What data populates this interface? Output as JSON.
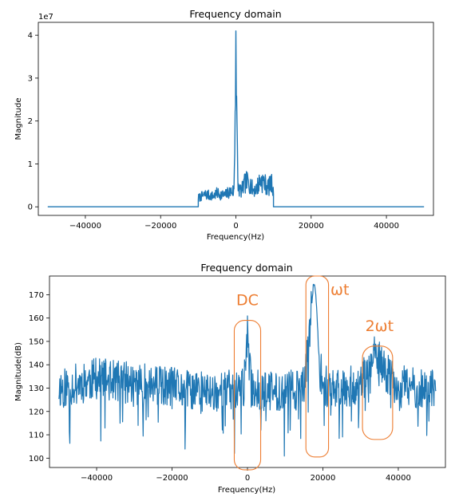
{
  "chart_data": [
    {
      "type": "line",
      "title": "Frequency domain",
      "xlabel": "Frequency(Hz)",
      "ylabel": "Magnitude",
      "y_offset_label": "1e7",
      "xlim": [
        -52500,
        52500
      ],
      "ylim": [
        -2000000,
        43000000
      ],
      "xticks": [
        -40000,
        -20000,
        0,
        20000,
        40000
      ],
      "xtick_labels": [
        "−40000",
        "−20000",
        "0",
        "20000",
        "40000"
      ],
      "yticks": [
        0,
        10000000,
        20000000,
        30000000,
        40000000
      ],
      "ytick_labels": [
        "0",
        "1",
        "2",
        "3",
        "4"
      ],
      "line_color": "#1f77b4",
      "series": [
        {
          "x": [
            -50000,
            -10000,
            -10000,
            -9000,
            -8000,
            -7000,
            -6000,
            -5000,
            -4000,
            -3000,
            -2000,
            -1000,
            -500,
            0,
            200,
            500,
            800,
            1500,
            2500,
            3500,
            4500,
            5500,
            6500,
            7500,
            8500,
            9500,
            10000,
            10000,
            50000
          ],
          "y": [
            0,
            0,
            2500000,
            3000000,
            3500000,
            3200000,
            3000000,
            3800000,
            3500000,
            3200000,
            4000000,
            4500000,
            4300000,
            41000000,
            25800000,
            6500000,
            5000000,
            4500000,
            6800000,
            7200000,
            4800000,
            5200000,
            7500000,
            6800000,
            5500000,
            6500000,
            5000000,
            0,
            0
          ]
        }
      ]
    },
    {
      "type": "line",
      "title": "Frequency domain",
      "xlabel": "Frequency(Hz)",
      "ylabel": "Magnitude(dB)",
      "xlim": [
        -52500,
        52500
      ],
      "ylim": [
        96,
        178
      ],
      "xticks": [
        -40000,
        -20000,
        0,
        20000,
        40000
      ],
      "xtick_labels": [
        "−40000",
        "−20000",
        "0",
        "20000",
        "40000"
      ],
      "yticks": [
        100,
        110,
        120,
        130,
        140,
        150,
        160,
        170
      ],
      "ytick_labels": [
        "100",
        "110",
        "120",
        "130",
        "140",
        "150",
        "160",
        "170"
      ],
      "line_color": "#1f77b4",
      "annotation_color": "#ed7d31",
      "series": [
        {
          "x": [
            -50000,
            -45000,
            -40000,
            -35000,
            -30000,
            -25000,
            -20000,
            -15000,
            -10000,
            -5000,
            -1000,
            0,
            1000,
            5000,
            10000,
            15000,
            16000,
            17000,
            17500,
            18000,
            18500,
            19000,
            20000,
            22000,
            25000,
            30000,
            32000,
            34000,
            36000,
            40000,
            45000,
            50000
          ],
          "y": [
            130,
            132,
            134,
            133,
            132,
            131,
            130,
            129,
            128,
            129,
            130,
            152,
            130,
            128,
            129,
            130,
            145,
            165,
            175,
            172,
            160,
            140,
            132,
            130,
            131,
            131,
            138,
            144,
            138,
            131,
            130,
            129
          ]
        }
      ],
      "annotations": [
        {
          "text": "DC",
          "x": 0,
          "y": 165.5
        },
        {
          "text": "ωt",
          "x": 24500,
          "y": 170
        },
        {
          "text": "2ωt",
          "x": 35000,
          "y": 154.5
        }
      ],
      "highlight_regions": [
        {
          "label": "DC",
          "x": [
            -3500,
            3500
          ],
          "y": [
            95,
            159
          ]
        },
        {
          "label": "ωt",
          "x": 15500,
          "x_end": 21500,
          "y": [
            100.5,
            178
          ]
        },
        {
          "label": "2ωt",
          "x": [
            30500,
            38500
          ],
          "y": [
            108,
            148
          ]
        }
      ]
    }
  ]
}
